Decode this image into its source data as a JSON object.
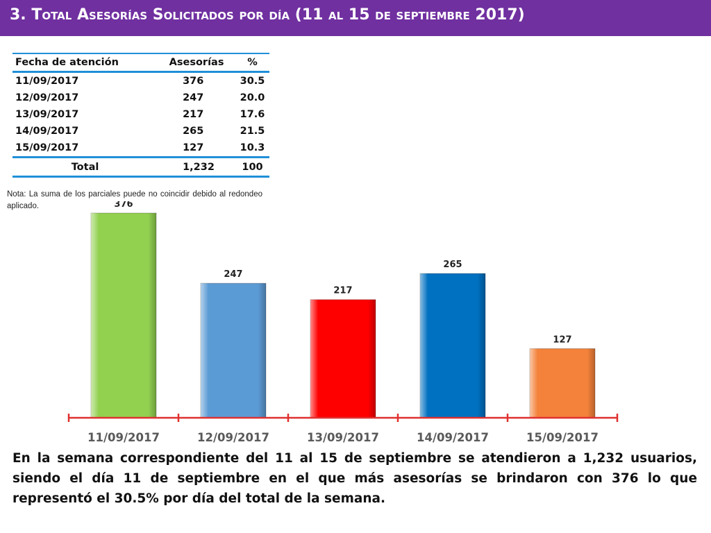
{
  "header": {
    "title": "3.  Total Asesorías Solicitados por día  (11 al 15  de septiembre 2017)"
  },
  "table": {
    "headers": [
      "Fecha de atención",
      "Asesorías",
      "%"
    ],
    "rows": [
      [
        "11/09/2017",
        "376",
        "30.5"
      ],
      [
        "12/09/2017",
        "247",
        "20.0"
      ],
      [
        "13/09/2017",
        "217",
        "17.6"
      ],
      [
        "14/09/2017",
        "265",
        "21.5"
      ],
      [
        "15/09/2017",
        "127",
        "10.3"
      ]
    ],
    "total": [
      "Total",
      "1,232",
      "100"
    ]
  },
  "note": "Nota: La suma de los parciales puede no coincidir debido al redondeo aplicado.",
  "chart_data": {
    "type": "bar",
    "categories": [
      "11/09/2017",
      "12/09/2017",
      "13/09/2017",
      "14/09/2017",
      "15/09/2017"
    ],
    "values": [
      376,
      247,
      217,
      265,
      127
    ],
    "colors": [
      "#92d050",
      "#5b9bd5",
      "#ff0000",
      "#0070c0",
      "#f4823a"
    ],
    "axis_color": "#e03030",
    "title": "",
    "xlabel": "",
    "ylabel": "",
    "grid": false
  },
  "summary": "En la semana correspondiente del 11 al 15  de septiembre se atendieron a 1,232 usuarios, siendo el día 11 de septiembre en el que más asesorías se brindaron con 376 lo que representó el 30.5% por día del total de la semana."
}
